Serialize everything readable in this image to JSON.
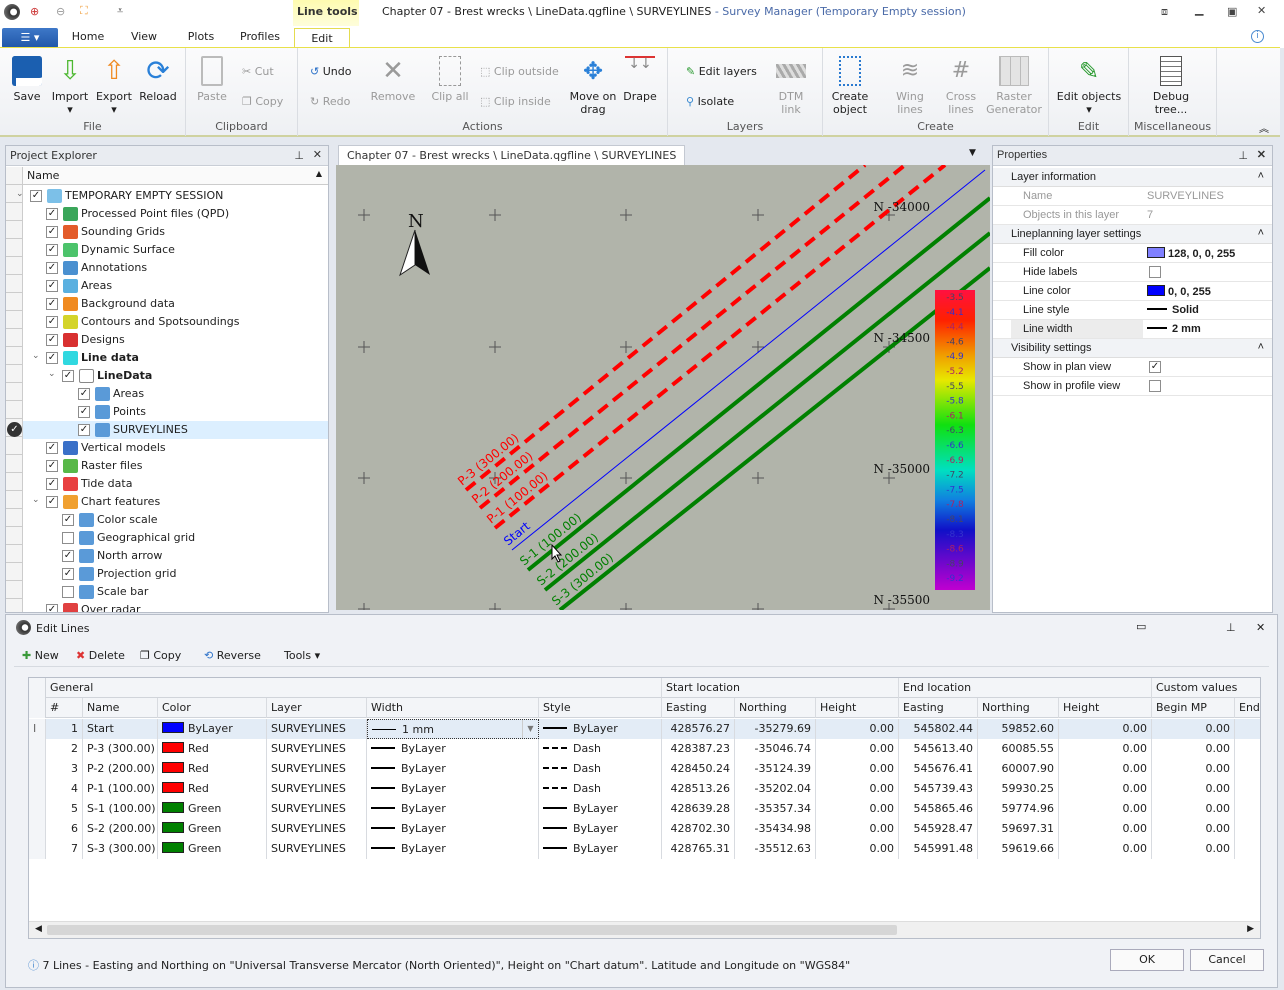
{
  "titlebar": {
    "context_tab": "Line tools",
    "doc": "Chapter 07 - Brest wrecks \\ LineData.qgfline \\ SURVEYLINES",
    "app": " - Survey Manager (Temporary Empty session)"
  },
  "tabs": [
    "Home",
    "View",
    "Plots",
    "Profiles",
    "Edit"
  ],
  "ribbon": {
    "file": {
      "label": "File",
      "buttons": [
        "Save",
        "Import",
        "Export",
        "Reload"
      ]
    },
    "clipboard": {
      "label": "Clipboard",
      "paste": "Paste",
      "cut": "Cut",
      "copy": "Copy"
    },
    "actions": {
      "label": "Actions",
      "undo": "Undo",
      "redo": "Redo",
      "remove": "Remove",
      "clip_all": "Clip all",
      "clip_outside": "Clip outside",
      "clip_inside": "Clip inside",
      "move": "Move on drag",
      "drape": "Drape"
    },
    "layers": {
      "label": "Layers",
      "edit_layers": "Edit layers",
      "isolate": "Isolate",
      "dtm": "DTM link"
    },
    "create": {
      "label": "Create",
      "create_object": "Create object",
      "wing": "Wing lines",
      "cross": "Cross lines",
      "raster": "Raster Generator"
    },
    "edit": {
      "label": "Edit",
      "edit_objects": "Edit objects"
    },
    "misc": {
      "label": "Miscellaneous",
      "debug": "Debug tree..."
    }
  },
  "explorer": {
    "title": "Project Explorer",
    "column": "Name",
    "items": [
      {
        "label": "TEMPORARY EMPTY SESSION",
        "level": 0,
        "checked": true,
        "expanded": true,
        "icon": "folder-icon",
        "color": "#7cc0e8"
      },
      {
        "label": "Processed Point files (QPD)",
        "level": 1,
        "checked": true,
        "icon": "qpd-icon",
        "color": "#3aa65a"
      },
      {
        "label": "Sounding Grids",
        "level": 1,
        "checked": true,
        "icon": "grid-icon",
        "color": "#e35b2a"
      },
      {
        "label": "Dynamic Surface",
        "level": 1,
        "checked": true,
        "icon": "surface-icon",
        "color": "#4cc36b"
      },
      {
        "label": "Annotations",
        "level": 1,
        "checked": true,
        "icon": "annotation-icon",
        "color": "#4a90d0"
      },
      {
        "label": "Areas",
        "level": 1,
        "checked": true,
        "icon": "area-icon",
        "color": "#5ab0e0"
      },
      {
        "label": "Background data",
        "level": 1,
        "checked": true,
        "icon": "background-icon",
        "color": "#f08a20"
      },
      {
        "label": "Contours and Spotsoundings",
        "level": 1,
        "checked": true,
        "icon": "contour-icon",
        "color": "#d4d42a"
      },
      {
        "label": "Designs",
        "level": 1,
        "checked": true,
        "icon": "design-icon",
        "color": "#d83030"
      },
      {
        "label": "Line data",
        "level": 1,
        "checked": true,
        "expanded": true,
        "bold": true,
        "icon": "line-data-icon",
        "color": "#30d8e0"
      },
      {
        "label": "LineData",
        "level": 2,
        "checked": true,
        "expanded": true,
        "bold": true,
        "icon": "list-icon",
        "color": "#ffffff"
      },
      {
        "label": "Areas",
        "level": 3,
        "checked": true,
        "icon": "layer-icon",
        "color": "#5a9ad8"
      },
      {
        "label": "Points",
        "level": 3,
        "checked": true,
        "icon": "layer-icon",
        "color": "#5a9ad8"
      },
      {
        "label": "SURVEYLINES",
        "level": 3,
        "checked": true,
        "selected": true,
        "icon": "layer-icon",
        "color": "#5a9ad8"
      },
      {
        "label": "Vertical models",
        "level": 1,
        "checked": true,
        "icon": "globe-icon",
        "color": "#3a70c8"
      },
      {
        "label": "Raster files",
        "level": 1,
        "checked": true,
        "icon": "image-icon",
        "color": "#58b848"
      },
      {
        "label": "Tide data",
        "level": 1,
        "checked": true,
        "icon": "tide-icon",
        "color": "#e84040"
      },
      {
        "label": "Chart features",
        "level": 1,
        "checked": true,
        "expanded": true,
        "icon": "chart-features-icon",
        "color": "#f0a030"
      },
      {
        "label": "Color scale",
        "level": 2,
        "checked": true,
        "icon": "layer-icon",
        "color": "#5a9ad8"
      },
      {
        "label": "Geographical grid",
        "level": 2,
        "checked": false,
        "icon": "layer-icon",
        "color": "#5a9ad8"
      },
      {
        "label": "North arrow",
        "level": 2,
        "checked": true,
        "icon": "layer-icon",
        "color": "#5a9ad8"
      },
      {
        "label": "Projection grid",
        "level": 2,
        "checked": true,
        "icon": "layer-icon",
        "color": "#5a9ad8"
      },
      {
        "label": "Scale bar",
        "level": 2,
        "checked": false,
        "icon": "layer-icon",
        "color": "#5a9ad8"
      },
      {
        "label": "Over radar",
        "level": 1,
        "checked": true,
        "icon": "radar-icon",
        "color": "#e04040"
      }
    ]
  },
  "document": {
    "tab": "Chapter 07 - Brest wrecks \\ LineData.qgfline \\ SURVEYLINES",
    "north_label": "N",
    "northings": [
      "N -34000",
      "N -34500",
      "N -35000",
      "N -35500"
    ],
    "color_scale": [
      "-3.5",
      "-4.1",
      "-4.4",
      "-4.6",
      "-4.9",
      "-5.2",
      "-5.5",
      "-5.8",
      "-6.1",
      "-6.3",
      "-6.6",
      "-6.9",
      "-7.2",
      "-7.5",
      "-7.8",
      "-8.1",
      "-8.3",
      "-8.6",
      "-8.9",
      "-9.2"
    ],
    "lines": [
      {
        "label": "P-3 (300.00)",
        "color": "#ff0000",
        "style": "dash"
      },
      {
        "label": "P-2 (200.00)",
        "color": "#ff0000",
        "style": "dash"
      },
      {
        "label": "P-1 (100.00)",
        "color": "#ff0000",
        "style": "dash"
      },
      {
        "label": "Start",
        "color": "#0000ff",
        "style": "thin"
      },
      {
        "label": "S-1 (100.00)",
        "color": "#008000",
        "style": "solid"
      },
      {
        "label": "S-2 (200.00)",
        "color": "#008000",
        "style": "solid"
      },
      {
        "label": "S-3 (300.00)",
        "color": "#008000",
        "style": "solid"
      }
    ]
  },
  "properties": {
    "title": "Properties",
    "sec1": "Layer information",
    "name_k": "Name",
    "name_v": "SURVEYLINES",
    "obj_k": "Objects in this layer",
    "obj_v": "7",
    "sec2": "Lineplanning layer settings",
    "fill_k": "Fill color",
    "fill_v": "128, 0, 0, 255",
    "fill_color": "#8080ff",
    "hide_k": "Hide labels",
    "hide_v": false,
    "lc_k": "Line color",
    "lc_v": "0, 0, 255",
    "lc_color": "#0000ff",
    "ls_k": "Line style",
    "ls_v": "Solid",
    "lw_k": "Line width",
    "lw_v": "2 mm",
    "sec3": "Visibility settings",
    "plan_k": "Show in plan view",
    "plan_v": true,
    "prof_k": "Show in profile view",
    "prof_v": false
  },
  "editlines": {
    "title": "Edit Lines",
    "toolbar": {
      "new": "New",
      "delete": "Delete",
      "copy": "Copy",
      "reverse": "Reverse",
      "tools": "Tools"
    },
    "groups": [
      "General",
      "Start location",
      "End location",
      "Custom values"
    ],
    "columns": [
      "#",
      "Name",
      "Color",
      "Layer",
      "Width",
      "Style",
      "Easting",
      "Northing",
      "Height",
      "Easting",
      "Northing",
      "Height",
      "Begin MP",
      "End"
    ],
    "rows": [
      [
        "1",
        "Start",
        "ByLayer",
        "#0000ff",
        "SURVEYLINES",
        "1 mm",
        "solid",
        "ByLayer",
        "428576.27",
        "-35279.69",
        "0.00",
        "545802.44",
        "59852.60",
        "0.00",
        "0.00"
      ],
      [
        "2",
        "P-3 (300.00)",
        "Red",
        "#ff0000",
        "SURVEYLINES",
        "ByLayer",
        "dash",
        "Dash",
        "428387.23",
        "-35046.74",
        "0.00",
        "545613.40",
        "60085.55",
        "0.00",
        "0.00"
      ],
      [
        "3",
        "P-2 (200.00)",
        "Red",
        "#ff0000",
        "SURVEYLINES",
        "ByLayer",
        "dash",
        "Dash",
        "428450.24",
        "-35124.39",
        "0.00",
        "545676.41",
        "60007.90",
        "0.00",
        "0.00"
      ],
      [
        "4",
        "P-1 (100.00)",
        "Red",
        "#ff0000",
        "SURVEYLINES",
        "ByLayer",
        "dash",
        "Dash",
        "428513.26",
        "-35202.04",
        "0.00",
        "545739.43",
        "59930.25",
        "0.00",
        "0.00"
      ],
      [
        "5",
        "S-1 (100.00)",
        "Green",
        "#008000",
        "SURVEYLINES",
        "ByLayer",
        "solid",
        "ByLayer",
        "428639.28",
        "-35357.34",
        "0.00",
        "545865.46",
        "59774.96",
        "0.00",
        "0.00"
      ],
      [
        "6",
        "S-2 (200.00)",
        "Green",
        "#008000",
        "SURVEYLINES",
        "ByLayer",
        "solid",
        "ByLayer",
        "428702.30",
        "-35434.98",
        "0.00",
        "545928.47",
        "59697.31",
        "0.00",
        "0.00"
      ],
      [
        "7",
        "S-3 (300.00)",
        "Green",
        "#008000",
        "SURVEYLINES",
        "ByLayer",
        "solid",
        "ByLayer",
        "428765.31",
        "-35512.63",
        "0.00",
        "545991.48",
        "59619.66",
        "0.00",
        "0.00"
      ]
    ],
    "status": "7 Lines - Easting and Northing on \"Universal Transverse Mercator (North Oriented)\", Height on \"Chart datum\". Latitude and Longitude on \"WGS84\"",
    "ok": "OK",
    "cancel": "Cancel"
  }
}
